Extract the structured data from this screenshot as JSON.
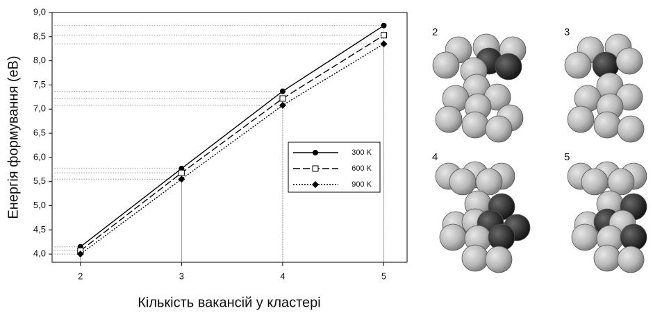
{
  "chart_data": {
    "type": "line",
    "x_label": "Кількість вакансій у кластері",
    "y_label": "Енергія формування (еВ)",
    "x": [
      2,
      3,
      4,
      5
    ],
    "series": [
      {
        "name": "300 K",
        "color": "#000000",
        "dash": "solid",
        "marker": "circle",
        "values": [
          4.15,
          5.77,
          7.37,
          8.73
        ]
      },
      {
        "name": "600 K",
        "color": "#000000",
        "dash": "dashed",
        "marker": "square-open",
        "values": [
          4.07,
          5.68,
          7.22,
          8.53
        ]
      },
      {
        "name": "900 K",
        "color": "#000000",
        "dash": "dotted",
        "marker": "diamond",
        "values": [
          4.0,
          5.55,
          7.08,
          8.35
        ]
      }
    ],
    "xlim": [
      1.72,
      5.23
    ],
    "xticks": [
      2,
      3,
      4,
      5
    ],
    "ylim": [
      3.83,
      9.0
    ],
    "yticks": [
      {
        "value": 4.0,
        "label": "4,0"
      },
      {
        "value": 4.5,
        "label": "4,5"
      },
      {
        "value": 5.0,
        "label": "5,0"
      },
      {
        "value": 5.5,
        "label": "5,5"
      },
      {
        "value": 6.0,
        "label": "6,0"
      },
      {
        "value": 6.5,
        "label": "6,5"
      },
      {
        "value": 7.0,
        "label": "7,0"
      },
      {
        "value": 7.5,
        "label": "7,5"
      },
      {
        "value": 8.0,
        "label": "8,0"
      },
      {
        "value": 8.5,
        "label": "8,5"
      },
      {
        "value": 9.0,
        "label": "9,0"
      }
    ],
    "grid": false,
    "legend": "right",
    "guide_lines": true
  },
  "clusters": {
    "labels": [
      "2",
      "3",
      "4",
      "5"
    ]
  }
}
